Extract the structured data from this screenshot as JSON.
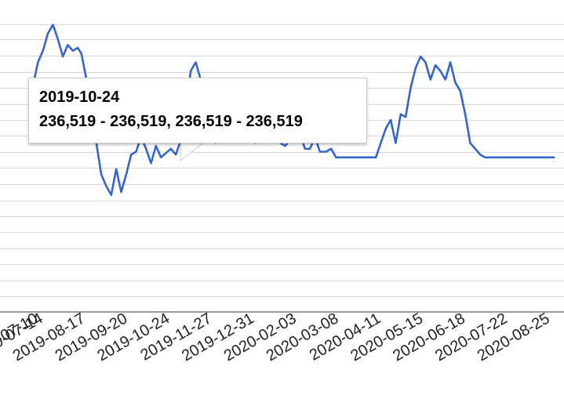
{
  "chart_data": {
    "type": "line",
    "title": "",
    "xlabel": "",
    "ylabel": "",
    "grid": true,
    "x_tick_labels": [
      "2019-07-10",
      "2019-07-14",
      "2019-08-17",
      "2019-09-20",
      "2019-10-24",
      "2019-11-27",
      "2019-12-31",
      "2020-02-03",
      "2020-03-08",
      "2020-04-11",
      "2020-05-15",
      "2020-06-18",
      "2020-07-22",
      "2020-08-25"
    ],
    "series": [
      {
        "color": "#3366cc",
        "x": [
          "2019-07-10",
          "2019-07-13",
          "2019-07-17",
          "2019-07-21",
          "2019-07-25",
          "2019-07-29",
          "2019-08-02",
          "2019-08-06",
          "2019-08-10",
          "2019-08-14",
          "2019-08-17",
          "2019-08-21",
          "2019-08-25",
          "2019-08-29",
          "2019-09-02",
          "2019-09-06",
          "2019-09-10",
          "2019-09-14",
          "2019-09-18",
          "2019-09-22",
          "2019-09-26",
          "2019-09-30",
          "2019-10-04",
          "2019-10-08",
          "2019-10-12",
          "2019-10-16",
          "2019-10-20",
          "2019-10-24",
          "2019-10-28",
          "2019-11-01",
          "2019-11-05",
          "2019-11-09",
          "2019-11-13",
          "2019-11-17",
          "2019-11-21",
          "2019-11-25",
          "2019-11-29",
          "2019-12-03",
          "2019-12-07",
          "2019-12-11",
          "2019-12-15",
          "2019-12-19",
          "2019-12-23",
          "2019-12-27",
          "2019-12-31",
          "2020-01-04",
          "2020-01-08",
          "2020-01-12",
          "2020-01-16",
          "2020-01-20",
          "2020-01-24",
          "2020-01-28",
          "2020-02-01",
          "2020-02-05",
          "2020-02-09",
          "2020-02-13",
          "2020-02-17",
          "2020-02-21",
          "2020-02-25",
          "2020-03-01",
          "2020-03-05",
          "2020-03-09",
          "2020-03-13",
          "2020-03-17",
          "2020-03-21",
          "2020-03-25",
          "2020-03-29",
          "2020-04-02",
          "2020-04-06",
          "2020-04-10",
          "2020-04-14",
          "2020-04-18",
          "2020-04-22",
          "2020-04-26",
          "2020-04-30",
          "2020-05-04",
          "2020-05-08",
          "2020-05-12",
          "2020-05-16",
          "2020-05-20",
          "2020-05-24",
          "2020-05-28",
          "2020-06-01",
          "2020-06-05",
          "2020-06-09",
          "2020-06-13",
          "2020-06-17",
          "2020-06-21",
          "2020-06-25",
          "2020-06-29",
          "2020-07-03",
          "2020-07-07",
          "2020-07-11",
          "2020-07-15",
          "2020-07-19",
          "2020-07-23",
          "2020-07-27",
          "2020-07-31",
          "2020-08-04",
          "2020-08-08",
          "2020-08-12",
          "2020-08-16",
          "2020-08-20",
          "2020-08-24",
          "2020-08-28",
          "2020-09-01"
        ],
        "values": [
          262000,
          268000,
          272000,
          278000,
          281000,
          276000,
          270000,
          274000,
          272000,
          273000,
          271000,
          262000,
          250000,
          240000,
          229000,
          225000,
          222000,
          231000,
          223000,
          229000,
          236000,
          237000,
          242000,
          238000,
          233000,
          239000,
          235000,
          236519,
          238000,
          236000,
          241000,
          252000,
          265000,
          268000,
          262000,
          251000,
          244000,
          240000,
          250000,
          246000,
          250000,
          253000,
          241000,
          252000,
          249000,
          240000,
          243000,
          242000,
          241000,
          247000,
          240000,
          239000,
          241000,
          244000,
          243000,
          238000,
          238000,
          242000,
          237000,
          237000,
          238000,
          235000,
          235000,
          235000,
          235000,
          235000,
          235000,
          235000,
          235000,
          235000,
          240000,
          245000,
          248000,
          240000,
          250000,
          249000,
          259000,
          266000,
          270000,
          268000,
          262000,
          267000,
          265000,
          262000,
          268000,
          261000,
          258000,
          250000,
          240000,
          238000,
          236000,
          235000,
          235000,
          235000,
          235000,
          235000,
          235000,
          235000,
          235000,
          235000,
          235000,
          235000,
          235000,
          235000,
          235000,
          235000
        ]
      }
    ],
    "tooltip": {
      "date": "2019-10-24",
      "value": "236,519 - 236,519, 236,519 - 236,519"
    }
  }
}
